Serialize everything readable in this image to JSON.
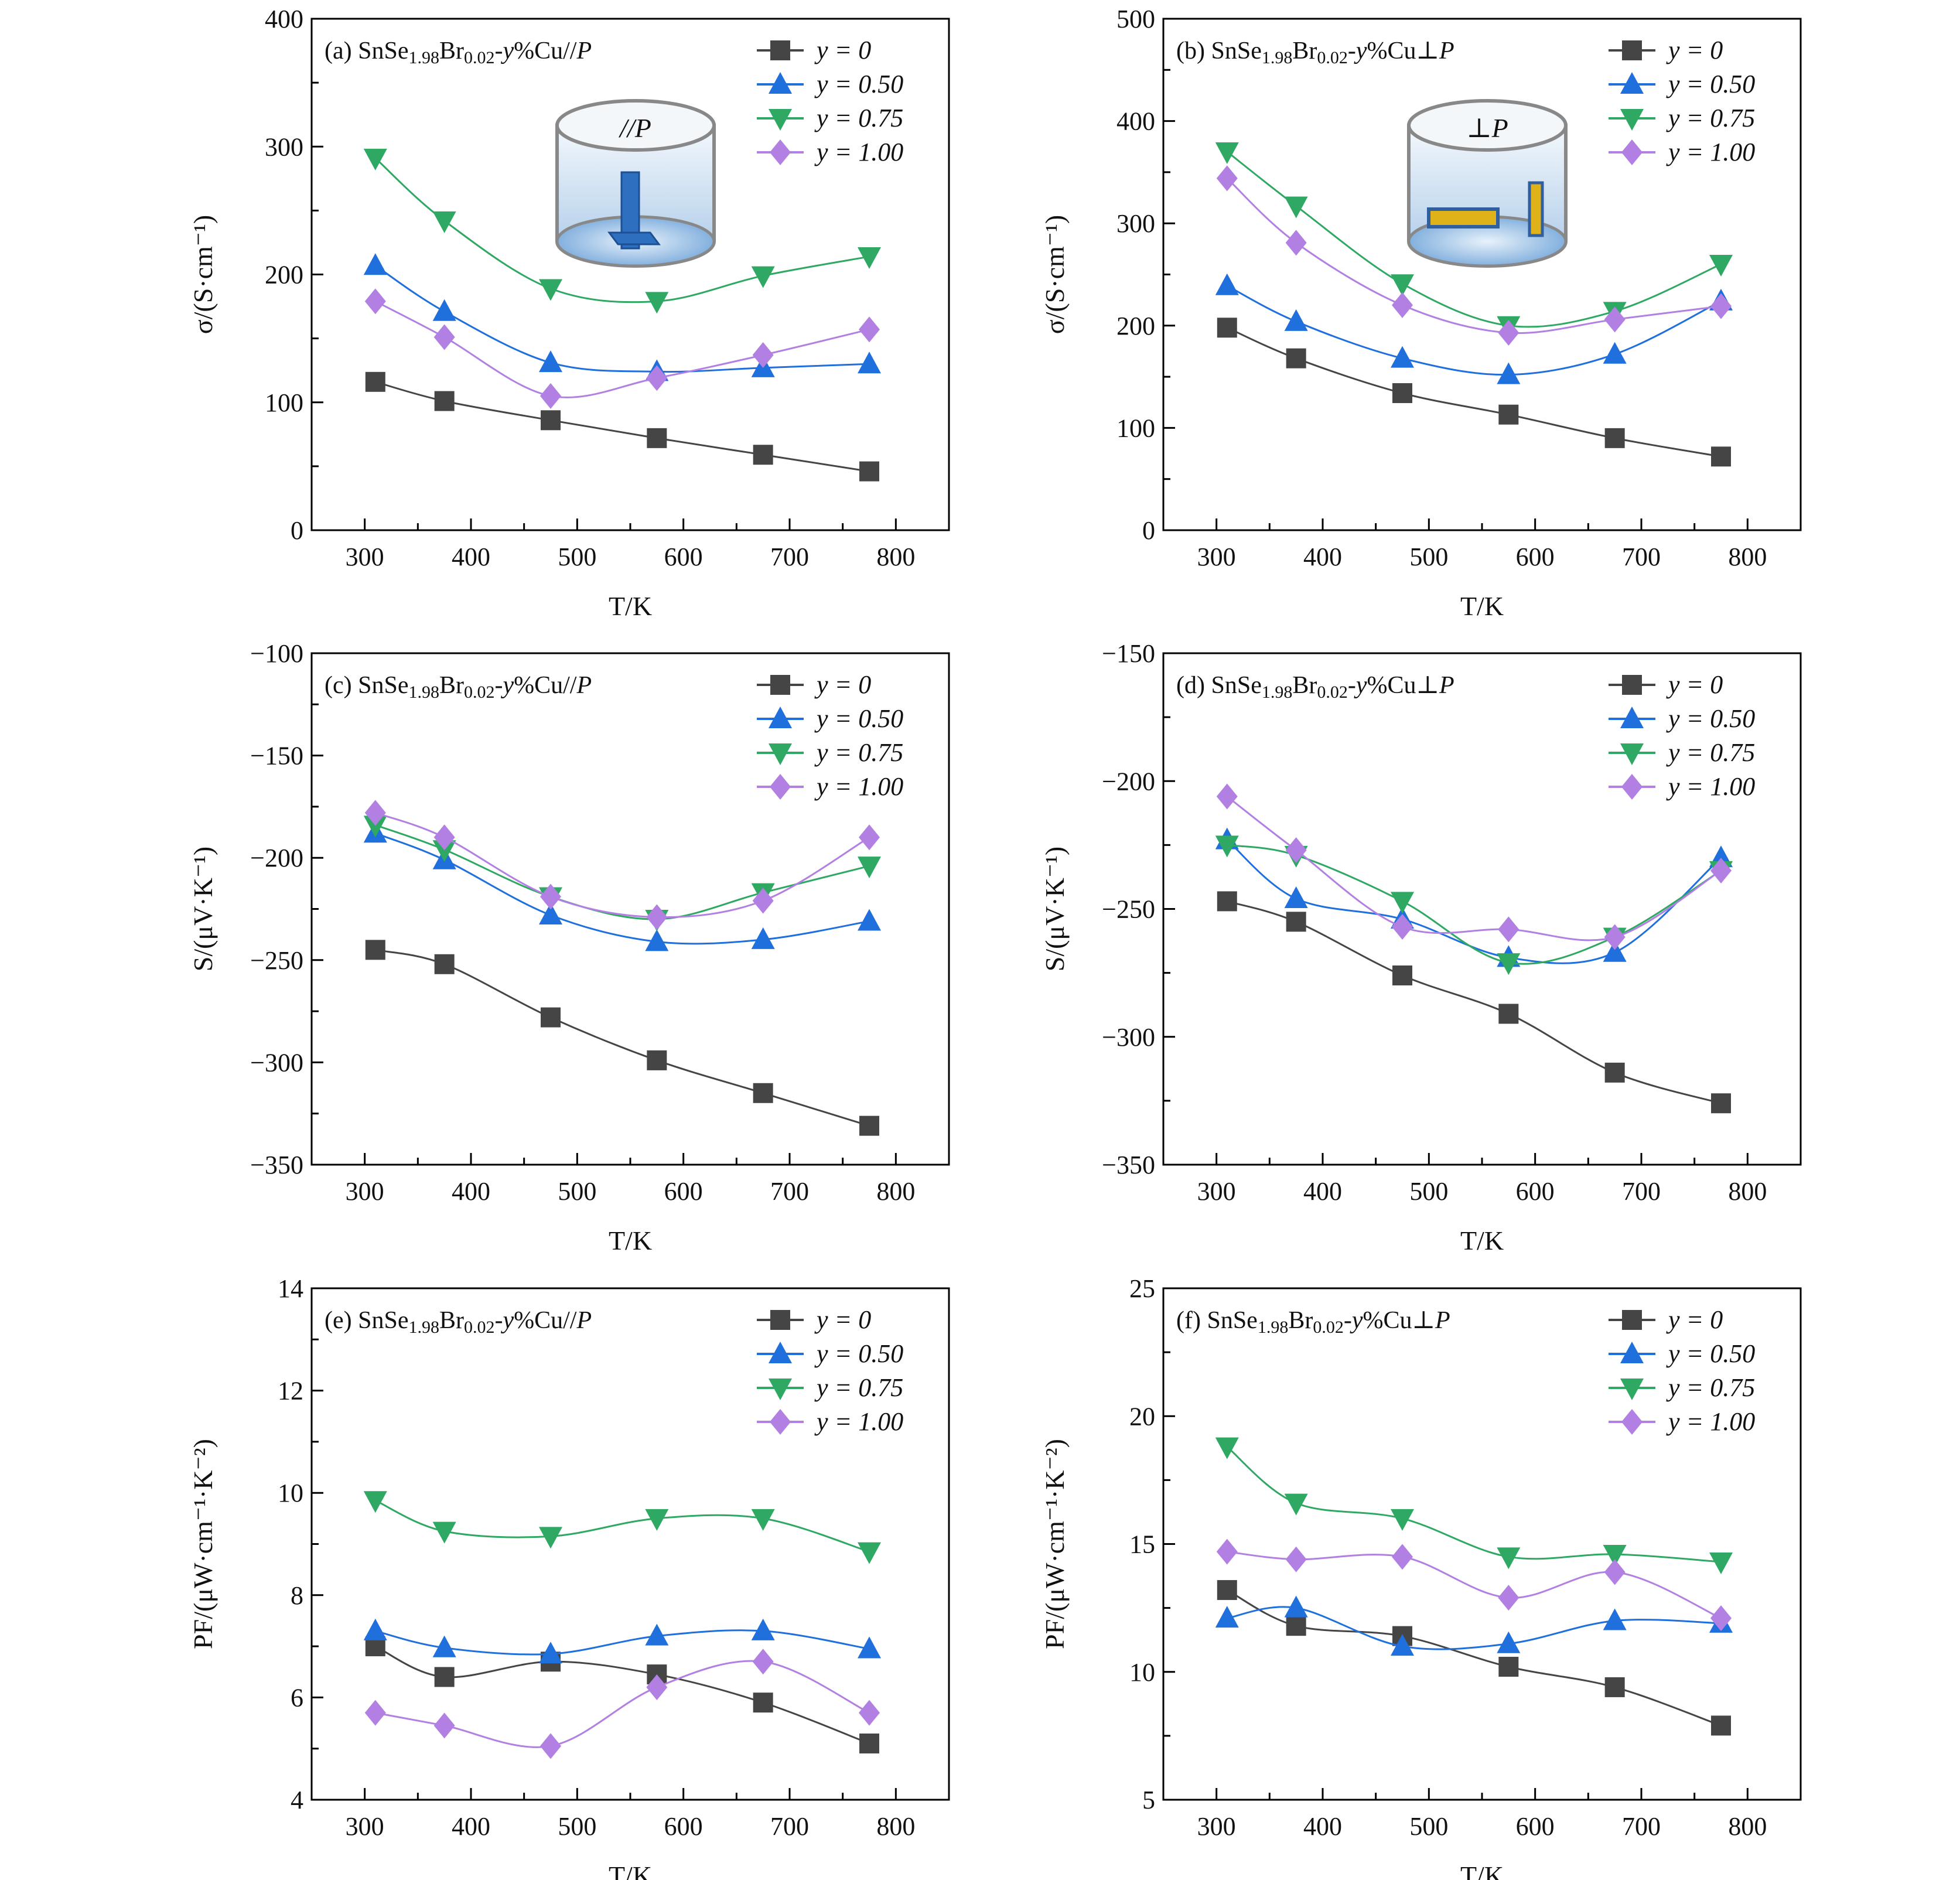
{
  "colors": {
    "y=0": "#454545",
    "y=0.50": "#1f6fdc",
    "y=0.75": "#2ea862",
    "y=1.00": "#b27fe2"
  },
  "legend": [
    {
      "label": "y = 0",
      "marker": "square",
      "color": "#454545"
    },
    {
      "label": "y = 0.50",
      "marker": "triangle-up",
      "color": "#1f6fdc"
    },
    {
      "label": "y = 0.75",
      "marker": "triangle-down",
      "color": "#2ea862"
    },
    {
      "label": "y = 1.00",
      "marker": "diamond",
      "color": "#b27fe2"
    }
  ],
  "chart_data": [
    {
      "type": "line",
      "panel": "a",
      "title": [
        {
          "t": "(a) SnSe"
        },
        {
          "t": "1.98",
          "sub": true
        },
        {
          "t": "Br"
        },
        {
          "t": "0.02",
          "sub": true
        },
        {
          "t": "-"
        },
        {
          "t": "y",
          "it": true
        },
        {
          "t": "%Cu//"
        },
        {
          "t": "P",
          "it": true
        }
      ],
      "inset": {
        "type": "cylinder",
        "label": "//P",
        "orientation": "parallel"
      },
      "xlabel": "T/K",
      "ylabel": "σ/(S·cm⁻¹)",
      "xlim": [
        250,
        850
      ],
      "ylim": [
        0,
        400
      ],
      "xticks": [
        300,
        400,
        500,
        600,
        700,
        800
      ],
      "yticks": [
        0,
        100,
        200,
        300,
        400
      ],
      "x": [
        310,
        375,
        475,
        575,
        675,
        775
      ],
      "series": [
        {
          "name": "y = 0",
          "values": [
            116,
            101,
            86,
            72,
            59,
            46
          ]
        },
        {
          "name": "y = 0.50",
          "values": [
            207,
            171,
            131,
            124,
            127,
            130
          ]
        },
        {
          "name": "y = 0.75",
          "values": [
            291,
            242,
            189,
            179,
            199,
            214
          ]
        },
        {
          "name": "y = 1.00",
          "values": [
            179,
            151,
            105,
            119,
            137,
            157
          ]
        }
      ]
    },
    {
      "type": "line",
      "panel": "b",
      "title": [
        {
          "t": "(b) SnSe"
        },
        {
          "t": "1.98",
          "sub": true
        },
        {
          "t": "Br"
        },
        {
          "t": "0.02",
          "sub": true
        },
        {
          "t": "-"
        },
        {
          "t": "y",
          "it": true
        },
        {
          "t": "%Cu⊥"
        },
        {
          "t": "P",
          "it": true
        }
      ],
      "inset": {
        "type": "cylinder",
        "label": "⊥P",
        "orientation": "perpendicular"
      },
      "xlabel": "T/K",
      "ylabel": "σ/(S·cm⁻¹)",
      "xlim": [
        250,
        850
      ],
      "ylim": [
        0,
        500
      ],
      "xticks": [
        300,
        400,
        500,
        600,
        700,
        800
      ],
      "yticks": [
        0,
        100,
        200,
        300,
        400,
        500
      ],
      "x": [
        310,
        375,
        475,
        575,
        675,
        775
      ],
      "series": [
        {
          "name": "y = 0",
          "values": [
            198,
            168,
            134,
            113,
            90,
            72
          ]
        },
        {
          "name": "y = 0.50",
          "values": [
            239,
            204,
            168,
            152,
            172,
            224
          ]
        },
        {
          "name": "y = 0.75",
          "values": [
            370,
            317,
            241,
            200,
            214,
            260
          ]
        },
        {
          "name": "y = 1.00",
          "values": [
            344,
            281,
            220,
            193,
            206,
            219
          ]
        }
      ]
    },
    {
      "type": "line",
      "panel": "c",
      "title": [
        {
          "t": "(c) SnSe"
        },
        {
          "t": "1.98",
          "sub": true
        },
        {
          "t": "Br"
        },
        {
          "t": "0.02",
          "sub": true
        },
        {
          "t": "-"
        },
        {
          "t": "y",
          "it": true
        },
        {
          "t": "%Cu//"
        },
        {
          "t": "P",
          "it": true
        }
      ],
      "xlabel": "T/K",
      "ylabel": "S/(μV·K⁻¹)",
      "xlim": [
        250,
        850
      ],
      "ylim": [
        -350,
        -100
      ],
      "xticks": [
        300,
        400,
        500,
        600,
        700,
        800
      ],
      "yticks": [
        -350,
        -300,
        -250,
        -200,
        -150,
        -100
      ],
      "x": [
        310,
        375,
        475,
        575,
        675,
        775
      ],
      "series": [
        {
          "name": "y = 0",
          "values": [
            -245,
            -252,
            -278,
            -299,
            -315,
            -331
          ]
        },
        {
          "name": "y = 0.50",
          "values": [
            -188,
            -201,
            -228,
            -241,
            -240,
            -231
          ]
        },
        {
          "name": "y = 0.75",
          "values": [
            -184,
            -196,
            -219,
            -230,
            -217,
            -204
          ]
        },
        {
          "name": "y = 1.00",
          "values": [
            -178,
            -190,
            -219,
            -229,
            -221,
            -190
          ]
        }
      ]
    },
    {
      "type": "line",
      "panel": "d",
      "title": [
        {
          "t": "(d) SnSe"
        },
        {
          "t": "1.98",
          "sub": true
        },
        {
          "t": "Br"
        },
        {
          "t": "0.02",
          "sub": true
        },
        {
          "t": "-"
        },
        {
          "t": "y",
          "it": true
        },
        {
          "t": "%Cu⊥"
        },
        {
          "t": "P",
          "it": true
        }
      ],
      "xlabel": "T/K",
      "ylabel": "S/(μV·K⁻¹)",
      "xlim": [
        250,
        850
      ],
      "ylim": [
        -350,
        -150
      ],
      "xticks": [
        300,
        400,
        500,
        600,
        700,
        800
      ],
      "yticks": [
        -350,
        -300,
        -250,
        -200,
        -150
      ],
      "x": [
        310,
        375,
        475,
        575,
        675,
        775
      ],
      "series": [
        {
          "name": "y = 0",
          "values": [
            -247,
            -255,
            -276,
            -291,
            -314,
            -326
          ]
        },
        {
          "name": "y = 0.50",
          "values": [
            -223,
            -246,
            -254,
            -269,
            -267,
            -230
          ]
        },
        {
          "name": "y = 0.75",
          "values": [
            -225,
            -229,
            -247,
            -271,
            -261,
            -235
          ]
        },
        {
          "name": "y = 1.00",
          "values": [
            -206,
            -227,
            -257,
            -258,
            -261,
            -235
          ]
        }
      ]
    },
    {
      "type": "line",
      "panel": "e",
      "title": [
        {
          "t": "(e) SnSe"
        },
        {
          "t": "1.98",
          "sub": true
        },
        {
          "t": "Br"
        },
        {
          "t": "0.02",
          "sub": true
        },
        {
          "t": "-"
        },
        {
          "t": "y",
          "it": true
        },
        {
          "t": "%Cu//"
        },
        {
          "t": "P",
          "it": true
        }
      ],
      "xlabel": "T/K",
      "ylabel": "PF/(μW·cm⁻¹·K⁻²)",
      "xlim": [
        250,
        850
      ],
      "ylim": [
        4,
        14
      ],
      "xticks": [
        300,
        400,
        500,
        600,
        700,
        800
      ],
      "yticks": [
        4,
        6,
        8,
        10,
        12,
        14
      ],
      "x": [
        310,
        375,
        475,
        575,
        675,
        775
      ],
      "series": [
        {
          "name": "y = 0",
          "values": [
            7.0,
            6.4,
            6.7,
            6.45,
            5.9,
            5.1
          ]
        },
        {
          "name": "y = 0.50",
          "values": [
            7.3,
            6.97,
            6.85,
            7.2,
            7.3,
            6.95
          ]
        },
        {
          "name": "y = 0.75",
          "values": [
            9.85,
            9.25,
            9.15,
            9.5,
            9.5,
            8.85
          ]
        },
        {
          "name": "y = 1.00",
          "values": [
            5.7,
            5.45,
            5.05,
            6.2,
            6.7,
            5.7
          ]
        }
      ]
    },
    {
      "type": "line",
      "panel": "f",
      "title": [
        {
          "t": "(f) SnSe"
        },
        {
          "t": "1.98",
          "sub": true
        },
        {
          "t": "Br"
        },
        {
          "t": "0.02",
          "sub": true
        },
        {
          "t": "-"
        },
        {
          "t": "y",
          "it": true
        },
        {
          "t": "%Cu⊥"
        },
        {
          "t": "P",
          "it": true
        }
      ],
      "xlabel": "T/K",
      "ylabel": "PF/(μW·cm⁻¹·K⁻²)",
      "xlim": [
        250,
        850
      ],
      "ylim": [
        5,
        25
      ],
      "xticks": [
        300,
        400,
        500,
        600,
        700,
        800
      ],
      "yticks": [
        5,
        10,
        15,
        20,
        25
      ],
      "x": [
        310,
        375,
        475,
        575,
        675,
        775
      ],
      "series": [
        {
          "name": "y = 0",
          "values": [
            13.2,
            11.8,
            11.4,
            10.2,
            9.4,
            7.9
          ]
        },
        {
          "name": "y = 0.50",
          "values": [
            12.1,
            12.5,
            11.0,
            11.1,
            12.0,
            11.9
          ]
        },
        {
          "name": "y = 0.75",
          "values": [
            18.8,
            16.6,
            16.0,
            14.5,
            14.6,
            14.3
          ]
        },
        {
          "name": "y = 1.00",
          "values": [
            14.7,
            14.4,
            14.5,
            12.9,
            13.9,
            12.1
          ]
        }
      ]
    }
  ]
}
